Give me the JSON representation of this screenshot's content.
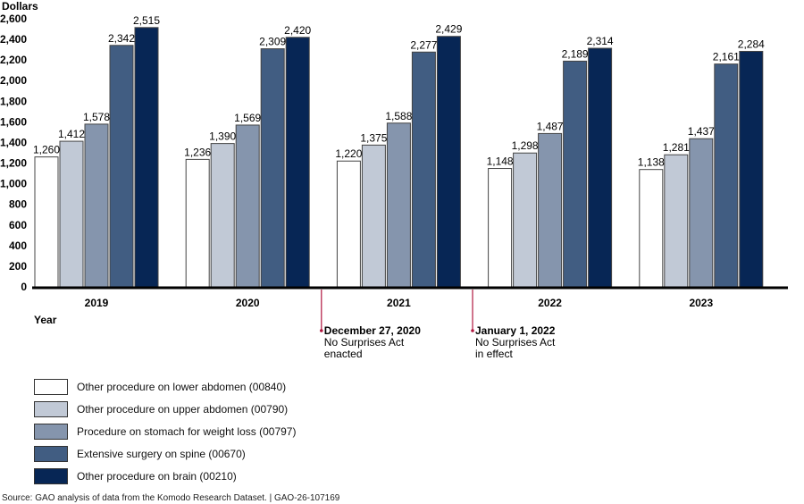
{
  "chart_data": {
    "type": "bar",
    "title": "",
    "ylabel": "Dollars",
    "xlabel": "Year",
    "ylim": [
      0,
      2600
    ],
    "yticks": [
      0,
      200,
      400,
      600,
      800,
      1000,
      1200,
      1400,
      1600,
      1800,
      2000,
      2200,
      2400,
      2600
    ],
    "ytick_labels": [
      "0",
      "200",
      "400",
      "600",
      "800",
      "1,000",
      "1,200",
      "1,400",
      "1,600",
      "1,800",
      "2,000",
      "2,200",
      "2,400",
      "2,600"
    ],
    "grid": false,
    "categories": [
      "2019",
      "2020",
      "2021",
      "2022",
      "2023"
    ],
    "series": [
      {
        "name": "Other procedure on lower abdomen (00840)",
        "color": "#ffffff",
        "values": [
          1260,
          1236,
          1220,
          1148,
          1138
        ],
        "labels": [
          "1,260",
          "1,236",
          "1,220",
          "1,148",
          "1,138"
        ]
      },
      {
        "name": "Other procedure on upper abdomen (00790)",
        "color": "#c1c9d6",
        "values": [
          1412,
          1390,
          1375,
          1298,
          1281
        ],
        "labels": [
          "1,412",
          "1,390",
          "1,375",
          "1,298",
          "1,281"
        ]
      },
      {
        "name": "Procedure on stomach for weight loss (00797)",
        "color": "#8595ad",
        "values": [
          1578,
          1569,
          1588,
          1487,
          1437
        ],
        "labels": [
          "1,578",
          "1,569",
          "1,588",
          "1,487",
          "1,437"
        ]
      },
      {
        "name": "Extensive surgery on spine (00670)",
        "color": "#415d82",
        "values": [
          2342,
          2309,
          2277,
          2189,
          2161
        ],
        "labels": [
          "2,342",
          "2,309",
          "2,277",
          "2,189",
          "2,161"
        ]
      },
      {
        "name": "Other procedure on brain (00210)",
        "color": "#072655",
        "values": [
          2515,
          2420,
          2429,
          2314,
          2284
        ],
        "labels": [
          "2,515",
          "2,420",
          "2,429",
          "2,314",
          "2,284"
        ]
      }
    ],
    "legend_position": "bottom-left",
    "annotations": [
      {
        "between": [
          "2020",
          "2021"
        ],
        "title": "December 27, 2020",
        "lines": [
          "No Surprises Act",
          "enacted"
        ],
        "color": "#b0163f"
      },
      {
        "between": [
          "2021",
          "2022"
        ],
        "title": "January 1, 2022",
        "lines": [
          "No Surprises Act",
          "in effect"
        ],
        "color": "#b0163f"
      }
    ]
  },
  "source": "Source: GAO analysis of data from the Komodo Research Dataset.  |  GAO-26-107169"
}
